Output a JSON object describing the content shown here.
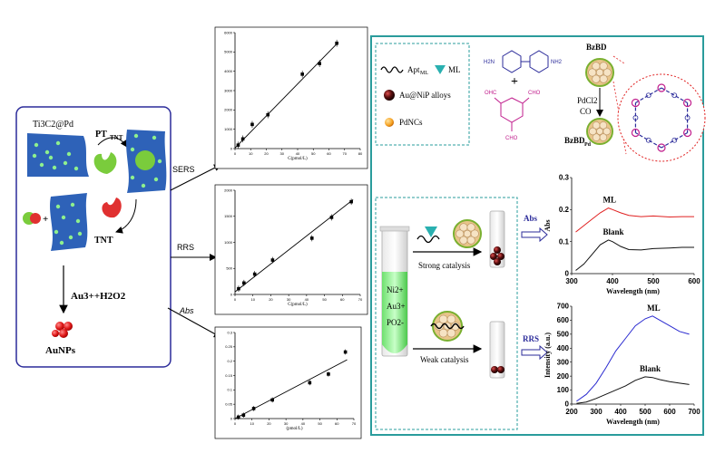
{
  "left_panel": {
    "substrate_label": "Ti3C2@Pd",
    "pt_label": "PT",
    "pt_sub": "TNT",
    "tnt_label": "TNT",
    "reaction": "Au3++H2O2",
    "product": "AuNPs"
  },
  "arrows": {
    "sers": "SERS",
    "rrs": "RRS",
    "abs": "Abs"
  },
  "legend": {
    "apt": "Apt",
    "apt_sub": "ML",
    "ml": "ML",
    "alloy": "Au@NiP alloys",
    "pdncs": "PdNCs"
  },
  "synthesis": {
    "nh2_left": "H2N",
    "nh2_right": "NH2",
    "cho_left": "OHC",
    "cho_right": "CHO",
    "cho_bottom": "CHO",
    "bzbd": "BzBD",
    "pdcl2": "PdCl2",
    "co": "CO",
    "bzbd_pd": "BzBD",
    "bzbd_pd_sub": "Pd"
  },
  "catalysis": {
    "tube_label_1": "Ni2+",
    "tube_label_2": "Au3+",
    "tube_label_3": "PO2-",
    "strong": "Strong catalysis",
    "weak": "Weak catalysis",
    "abs_tag": "Abs",
    "rrs_tag": "RRS"
  },
  "chart_data": [
    {
      "type": "scatter",
      "id": "sers",
      "ylabel": "",
      "xlabel": "C(pmol/L)",
      "xlim": [
        0,
        80
      ],
      "ylim": [
        0,
        6000
      ],
      "xticks": [
        0,
        10,
        20,
        30,
        40,
        50,
        60,
        70,
        80
      ],
      "yticks": [
        0,
        1000,
        2000,
        3000,
        4000,
        5000,
        6000
      ],
      "x": [
        2,
        5,
        11,
        21,
        43,
        54,
        65
      ],
      "y": [
        180,
        500,
        1250,
        1750,
        3850,
        4400,
        5450
      ],
      "fit": [
        [
          0,
          30
        ],
        [
          66,
          5500
        ]
      ]
    },
    {
      "type": "scatter",
      "id": "rrs",
      "ylabel": "",
      "xlabel": "C(pmol/L)",
      "xlim": [
        0,
        70
      ],
      "ylim": [
        0,
        2000
      ],
      "xticks": [
        0,
        10,
        20,
        30,
        40,
        50,
        60,
        70
      ],
      "yticks": [
        0,
        500,
        1000,
        1500,
        2000
      ],
      "x": [
        2,
        5,
        11,
        21,
        43,
        54,
        65
      ],
      "y": [
        110,
        220,
        390,
        660,
        1080,
        1480,
        1780
      ],
      "fit": [
        [
          0,
          50
        ],
        [
          66,
          1820
        ]
      ]
    },
    {
      "type": "scatter",
      "id": "abs",
      "ylabel": "",
      "xlabel": "(pmol/L)",
      "xlim": [
        0,
        70
      ],
      "ylim": [
        0,
        0.3
      ],
      "xticks": [
        0,
        10,
        20,
        30,
        40,
        50,
        60,
        70
      ],
      "yticks": [
        0,
        0.05,
        0.1,
        0.15,
        0.2,
        0.25,
        0.3
      ],
      "x": [
        2,
        5,
        11,
        22,
        44,
        55,
        65
      ],
      "y": [
        0.005,
        0.012,
        0.035,
        0.065,
        0.125,
        0.155,
        0.232
      ],
      "fit": [
        [
          0,
          0.0
        ],
        [
          66,
          0.205
        ]
      ]
    },
    {
      "type": "line",
      "id": "abs_spectrum",
      "xlabel": "Wavelength (nm)",
      "ylabel": "Abs",
      "xlim": [
        300,
        600
      ],
      "ylim": [
        0,
        0.3
      ],
      "xticks": [
        300,
        400,
        500,
        600
      ],
      "yticks": [
        0,
        0.1,
        0.2,
        0.3
      ],
      "series": [
        {
          "name": "ML",
          "color": "#e02020",
          "x": [
            310,
            330,
            350,
            370,
            390,
            400,
            420,
            440,
            470,
            500,
            540,
            570,
            600
          ],
          "y": [
            0.13,
            0.15,
            0.17,
            0.19,
            0.205,
            0.2,
            0.19,
            0.182,
            0.178,
            0.18,
            0.177,
            0.178,
            0.178
          ]
        },
        {
          "name": "Blank",
          "color": "#111111",
          "x": [
            310,
            330,
            350,
            370,
            390,
            400,
            420,
            440,
            470,
            500,
            540,
            570,
            600
          ],
          "y": [
            0.01,
            0.03,
            0.06,
            0.09,
            0.105,
            0.1,
            0.085,
            0.075,
            0.074,
            0.078,
            0.08,
            0.082,
            0.082
          ]
        }
      ]
    },
    {
      "type": "line",
      "id": "rrs_spectrum",
      "xlabel": "Wavelength (nm)",
      "ylabel": "Intensity (a.u.)",
      "xlim": [
        200,
        700
      ],
      "ylim": [
        0,
        700
      ],
      "xticks": [
        200,
        300,
        400,
        500,
        600,
        700
      ],
      "yticks": [
        0,
        100,
        200,
        300,
        400,
        500,
        600,
        700
      ],
      "series": [
        {
          "name": "ML",
          "color": "#2a2ad0",
          "x": [
            220,
            260,
            300,
            340,
            380,
            420,
            460,
            500,
            530,
            560,
            600,
            640,
            680
          ],
          "y": [
            20,
            70,
            150,
            260,
            380,
            470,
            560,
            610,
            630,
            600,
            560,
            520,
            500
          ]
        },
        {
          "name": "Blank",
          "color": "#111111",
          "x": [
            220,
            260,
            300,
            340,
            380,
            420,
            460,
            500,
            530,
            560,
            600,
            640,
            680
          ],
          "y": [
            5,
            15,
            40,
            70,
            100,
            130,
            170,
            195,
            190,
            175,
            160,
            150,
            140
          ]
        }
      ]
    }
  ]
}
